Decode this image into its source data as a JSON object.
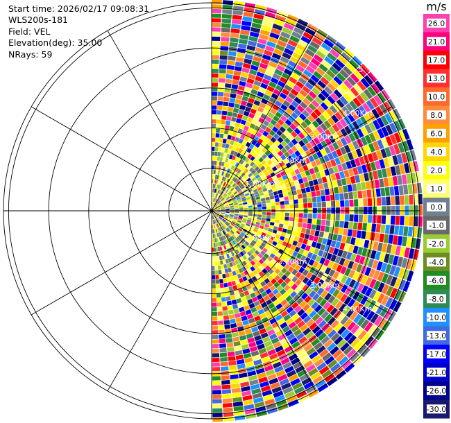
{
  "header": {
    "start_time": "Start time: 2026/02/17 09:08:31",
    "instrument": "WLS200s-181",
    "field": "Field: VEL",
    "elevation": "Elevation(deg): 35.00",
    "nrays": "NRays: 59"
  },
  "chart_data": {
    "type": "heatmap",
    "projection": "polar-ppi",
    "field": "VEL",
    "rays": 59,
    "azimuth_range_deg": [
      0,
      180
    ],
    "range_rings_km": [
      "1.00Km",
      "2.00Km",
      "3.00Km",
      "4.00Km"
    ],
    "range_ring_label_5": "5",
    "colorbar": {
      "unit": "m/s",
      "tick_labels": [
        "26.0",
        "21.0",
        "17.0",
        "13.0",
        "10.0",
        "8.0",
        "6.0",
        "4.0",
        "2.0",
        "1.0",
        "0.0",
        "-1.0",
        "-2.0",
        "-4.0",
        "-6.0",
        "-8.0",
        "-10.0",
        "-13.0",
        "-17.0",
        "-21.0",
        "-26.0",
        "-30.0"
      ],
      "colors": [
        "#ff40b0",
        "#ff007f",
        "#ff0000",
        "#ff3030",
        "#ff6a2a",
        "#ff8c3c",
        "#ffa000",
        "#ffd700",
        "#ffff00",
        "#ffff70",
        "#708090",
        "#696969",
        "#9acd32",
        "#6b8e23",
        "#228b22",
        "#2e8b57",
        "#1e90ff",
        "#4169e1",
        "#0000ff",
        "#0000cd",
        "#00008b",
        "#191970"
      ]
    }
  }
}
